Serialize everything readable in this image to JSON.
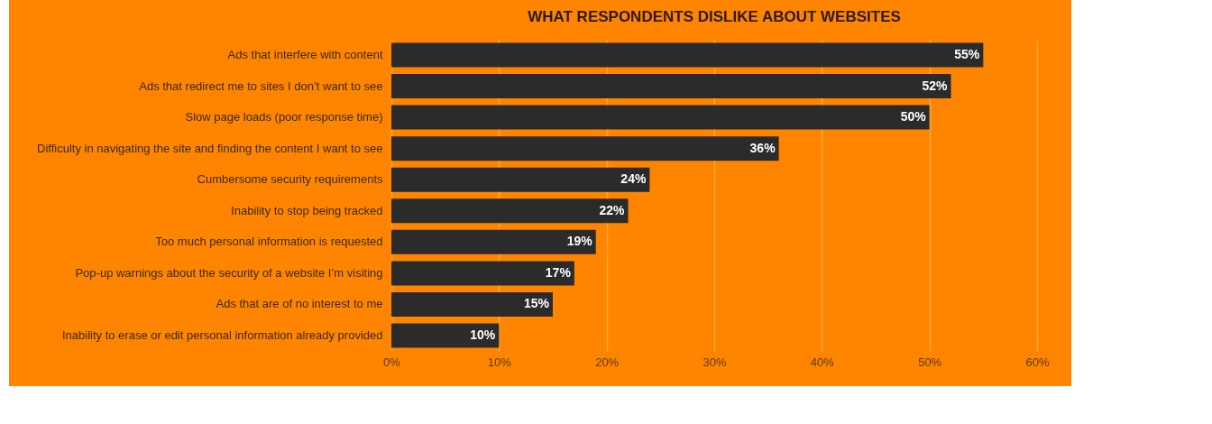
{
  "chart_data": {
    "type": "bar",
    "orientation": "horizontal",
    "title": "WHAT RESPONDENTS DISLIKE ABOUT WEBSITES",
    "categories": [
      "Ads that interfere with content",
      "Ads that redirect me to sites I don’t want to see",
      "Slow page loads (poor response time)",
      "Difficulty in navigating the site and finding the content I want to see",
      "Cumbersome security requirements",
      "Inability to stop being tracked",
      "Too much personal information is requested",
      "Pop-up warnings about the security of a website I’m visiting",
      "Ads that are of no interest to me",
      "Inability to erase or edit personal information already provided"
    ],
    "values": [
      55,
      52,
      50,
      36,
      24,
      22,
      19,
      17,
      15,
      10
    ],
    "value_labels": [
      "55%",
      "52%",
      "50%",
      "36%",
      "24%",
      "22%",
      "19%",
      "17%",
      "15%",
      "10%"
    ],
    "color": "#2b2b2b",
    "xlim": [
      0,
      60
    ],
    "xticks": [
      {
        "value": 0,
        "label": "0%"
      },
      {
        "value": 10,
        "label": "10%"
      },
      {
        "value": 20,
        "label": "20%"
      },
      {
        "value": 30,
        "label": "30%"
      },
      {
        "value": 40,
        "label": "40%"
      },
      {
        "value": 50,
        "label": "50%"
      },
      {
        "value": 60,
        "label": "60%"
      }
    ],
    "grid": "x"
  }
}
